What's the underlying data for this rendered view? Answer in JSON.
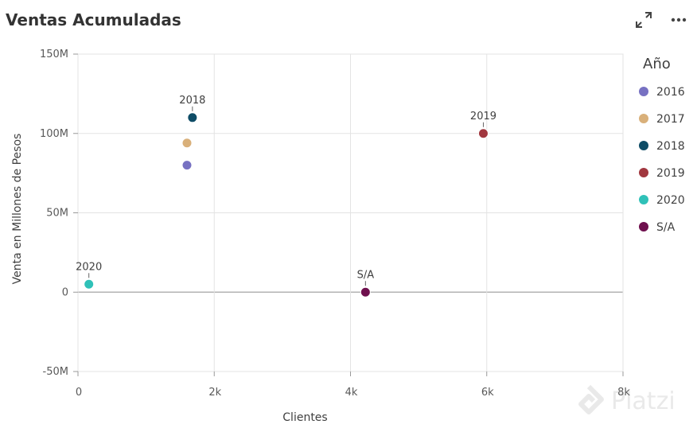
{
  "title": "Ventas Acumuladas",
  "actions": {
    "expand_icon": "expand-arrows-icon",
    "more_icon": "more-horizontal-icon"
  },
  "watermark": "Platzi",
  "chart_data": {
    "type": "scatter",
    "xlabel": "Clientes",
    "ylabel": "Venta en Millones de Pesos",
    "xlim": [
      0,
      8000
    ],
    "ylim": [
      -50000000,
      150000000
    ],
    "x_ticks": [
      0,
      2000,
      4000,
      6000,
      8000
    ],
    "x_tick_labels": [
      "0",
      "2k",
      "4k",
      "6k",
      "8k"
    ],
    "y_ticks": [
      -50000000,
      0,
      50000000,
      100000000,
      150000000
    ],
    "y_tick_labels": [
      "-50M",
      "0",
      "50M",
      "100M",
      "150M"
    ],
    "grid": true,
    "legend": {
      "title": "Año",
      "placement": "right",
      "entries": [
        {
          "name": "2016",
          "color": "#7771c2"
        },
        {
          "name": "2017",
          "color": "#d9b07a"
        },
        {
          "name": "2018",
          "color": "#0e4c66"
        },
        {
          "name": "2019",
          "color": "#a1373f"
        },
        {
          "name": "2020",
          "color": "#2fc1b8"
        },
        {
          "name": "S/A",
          "color": "#6e0f4d"
        }
      ]
    },
    "series": [
      {
        "name": "2016",
        "x": 1600,
        "y": 80000000,
        "label": ""
      },
      {
        "name": "2017",
        "x": 1600,
        "y": 94000000,
        "label": ""
      },
      {
        "name": "2018",
        "x": 1680,
        "y": 110000000,
        "label": "2018"
      },
      {
        "name": "2019",
        "x": 5950,
        "y": 100000000,
        "label": "2019"
      },
      {
        "name": "2020",
        "x": 160,
        "y": 5000000,
        "label": "2020"
      },
      {
        "name": "S/A",
        "x": 4220,
        "y": 0,
        "label": "S/A"
      }
    ]
  }
}
